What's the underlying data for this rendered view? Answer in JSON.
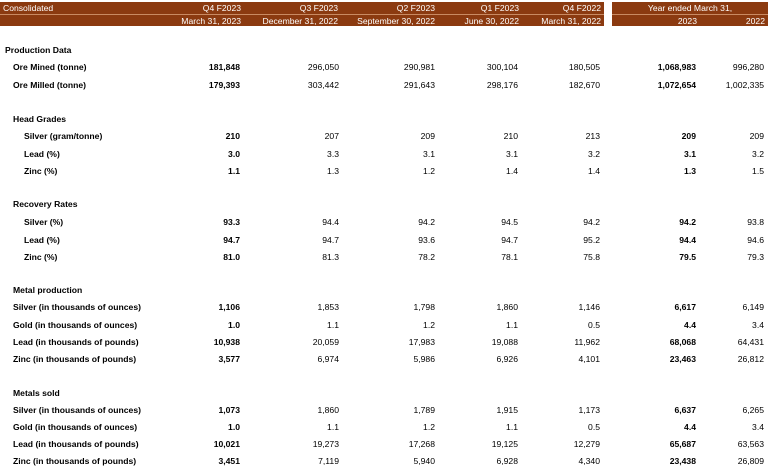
{
  "header": {
    "consolidated": "Consolidated",
    "periods": [
      {
        "quarter": "Q4 F2023",
        "date": "March 31, 2023"
      },
      {
        "quarter": "Q3 F2023",
        "date": "December 31, 2022"
      },
      {
        "quarter": "Q2 F2023",
        "date": "September 30, 2022"
      },
      {
        "quarter": "Q1 F2023",
        "date": "June 30, 2022"
      },
      {
        "quarter": "Q4 F2022",
        "date": "March 31, 2022"
      }
    ],
    "year_ended": "Year ended March 31,",
    "years": [
      "2023",
      "2022"
    ]
  },
  "sections": [
    {
      "title": "Production Data",
      "rows": [
        {
          "label": "Ore Mined (tonne)",
          "values": [
            "181,848",
            "296,050",
            "290,981",
            "300,104",
            "180,505",
            "1,068,983",
            "996,280"
          ]
        },
        {
          "label": "Ore Milled (tonne)",
          "values": [
            "179,393",
            "303,442",
            "291,643",
            "298,176",
            "182,670",
            "1,072,654",
            "1,002,335"
          ]
        }
      ]
    },
    {
      "title": "Head Grades",
      "rows": [
        {
          "label": "Silver (gram/tonne)",
          "values": [
            "210",
            "207",
            "209",
            "210",
            "213",
            "209",
            "209"
          ]
        },
        {
          "label": "Lead  (%)",
          "values": [
            "3.0",
            "3.3",
            "3.1",
            "3.1",
            "3.2",
            "3.1",
            "3.2"
          ]
        },
        {
          "label": "Zinc (%)",
          "values": [
            "1.1",
            "1.3",
            "1.2",
            "1.4",
            "1.4",
            "1.3",
            "1.5"
          ]
        }
      ]
    },
    {
      "title": "Recovery Rates",
      "rows": [
        {
          "label": "Silver  (%)",
          "values": [
            "93.3",
            "94.4",
            "94.2",
            "94.5",
            "94.2",
            "94.2",
            "93.8"
          ]
        },
        {
          "label": "Lead  (%)",
          "values": [
            "94.7",
            "94.7",
            "93.6",
            "94.7",
            "95.2",
            "94.4",
            "94.6"
          ]
        },
        {
          "label": "Zinc (%)",
          "values": [
            "81.0",
            "81.3",
            "78.2",
            "78.1",
            "75.8",
            "79.5",
            "79.3"
          ]
        }
      ]
    },
    {
      "title": "Metal production",
      "rows": [
        {
          "label": "Silver (in thousands of ounces)",
          "values": [
            "1,106",
            "1,853",
            "1,798",
            "1,860",
            "1,146",
            "6,617",
            "6,149"
          ]
        },
        {
          "label": "Gold  (in thousands of ounces)",
          "values": [
            "1.0",
            "1.1",
            "1.2",
            "1.1",
            "0.5",
            "4.4",
            "3.4"
          ]
        },
        {
          "label": "Lead (in thousands of pounds)",
          "values": [
            "10,938",
            "20,059",
            "17,983",
            "19,088",
            "11,962",
            "68,068",
            "64,431"
          ]
        },
        {
          "label": "Zinc (in thousands of pounds)",
          "values": [
            "3,577",
            "6,974",
            "5,986",
            "6,926",
            "4,101",
            "23,463",
            "26,812"
          ]
        }
      ]
    },
    {
      "title": "Metals sold",
      "rows": [
        {
          "label": "Silver (in thousands of ounces)",
          "values": [
            "1,073",
            "1,860",
            "1,789",
            "1,915",
            "1,173",
            "6,637",
            "6,265"
          ]
        },
        {
          "label": "Gold  (in thousands of ounces)",
          "values": [
            "1.0",
            "1.1",
            "1.2",
            "1.1",
            "0.5",
            "4.4",
            "3.4"
          ]
        },
        {
          "label": "Lead (in thousands of pounds)",
          "values": [
            "10,021",
            "19,273",
            "17,268",
            "19,125",
            "12,279",
            "65,687",
            "63,563"
          ]
        },
        {
          "label": "Zinc  (in thousands of pounds)",
          "values": [
            "3,451",
            "7,119",
            "5,940",
            "6,928",
            "4,340",
            "23,438",
            "26,809"
          ]
        }
      ]
    }
  ]
}
